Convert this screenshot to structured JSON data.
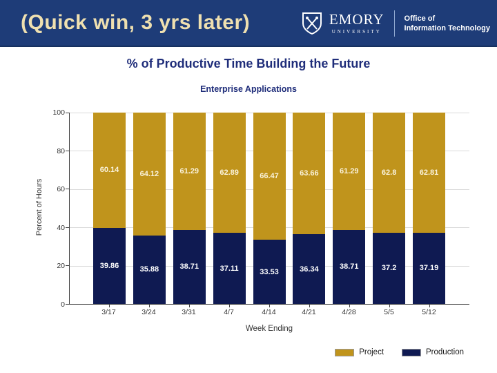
{
  "header": {
    "title": "(Quick win, 3 yrs later)",
    "logo": {
      "name": "EMORY",
      "subname": "UNIVERSITY"
    },
    "office_line1": "Office of",
    "office_line2": "Information Technology"
  },
  "main": {
    "heading": "% of Productive Time Building the Future"
  },
  "chart_data": {
    "type": "bar",
    "stacked": true,
    "title": "Enterprise Applications",
    "xlabel": "Week Ending",
    "ylabel": "Percent of Hours",
    "ylim": [
      0,
      100
    ],
    "yticks": [
      0,
      20,
      40,
      60,
      80,
      100
    ],
    "grid": true,
    "legend_position": "bottom-right",
    "categories": [
      "3/17",
      "3/24",
      "3/31",
      "4/7",
      "4/14",
      "4/21",
      "4/28",
      "5/5",
      "5/12"
    ],
    "series": [
      {
        "name": "Project",
        "color": "#C0941C",
        "label_color": "#FAF3DC",
        "values": [
          60.14,
          64.12,
          61.29,
          62.89,
          66.47,
          63.66,
          61.29,
          62.8,
          62.81
        ]
      },
      {
        "name": "Production",
        "color": "#0F1A52",
        "label_color": "#FFFFFF",
        "values": [
          39.86,
          35.88,
          38.71,
          37.11,
          33.53,
          36.34,
          38.71,
          37.2,
          37.19
        ]
      }
    ]
  },
  "colors": {
    "banner_bg": "#1E3C78",
    "banner_border": "#16305F",
    "title_cream": "#EFE0B0",
    "heading_navy": "#1F2D7A",
    "divider_blue": "#8FA8D0",
    "grid": "#D9D9D9",
    "axis": "#404040"
  }
}
